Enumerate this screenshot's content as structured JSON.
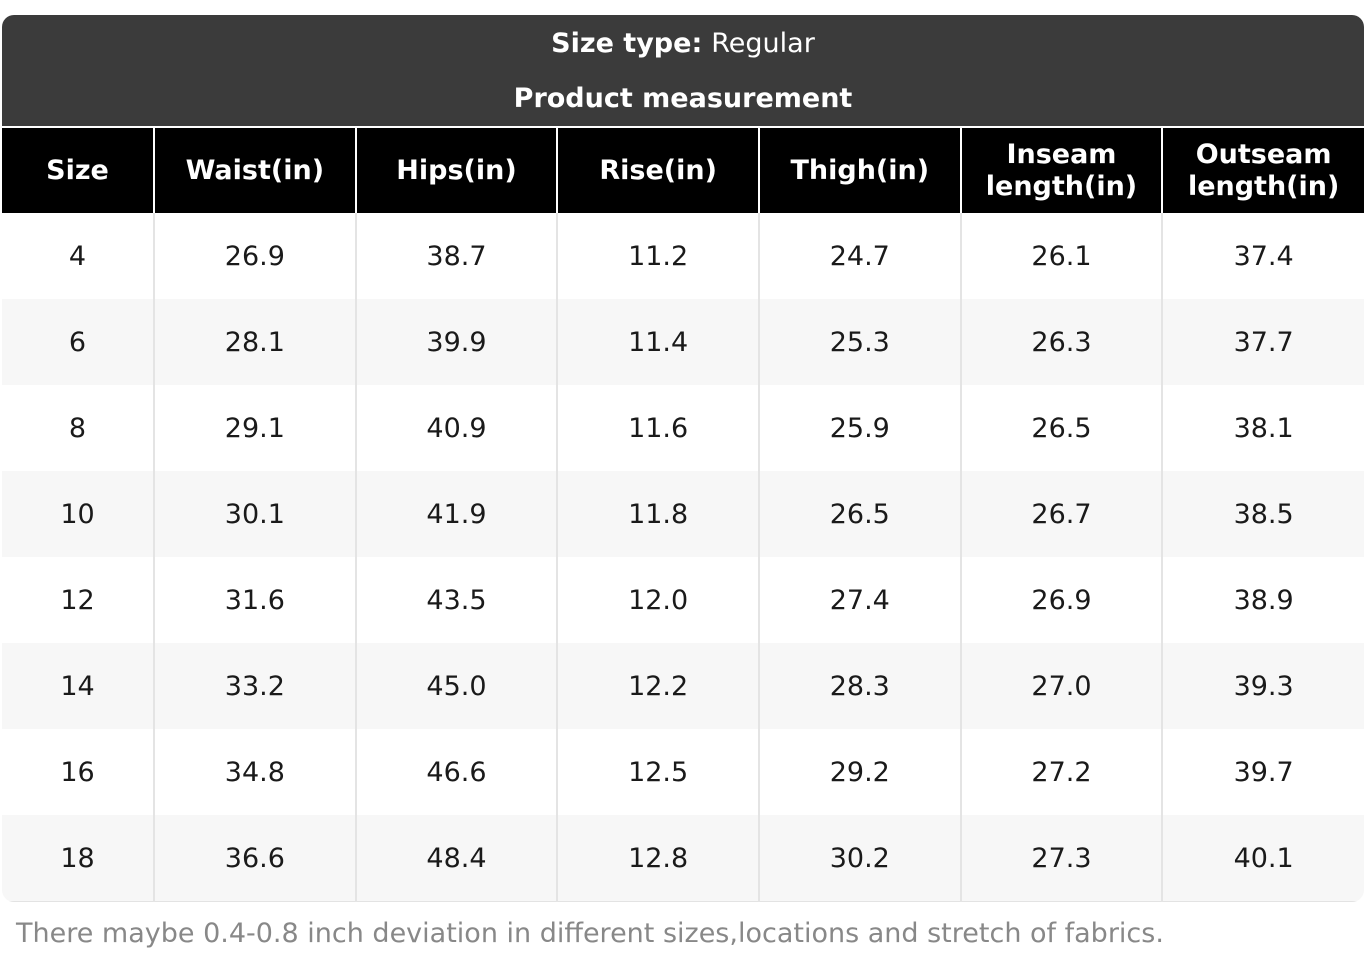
{
  "banner": {
    "size_type_label": "Size type:",
    "size_type_value": "Regular",
    "subtitle": "Product measurement"
  },
  "table": {
    "columns": [
      "Size",
      "Waist(in)",
      "Hips(in)",
      "Rise(in)",
      "Thigh(in)",
      "Inseam length(in)",
      "Outseam length(in)"
    ],
    "rows": [
      [
        "4",
        "26.9",
        "38.7",
        "11.2",
        "24.7",
        "26.1",
        "37.4"
      ],
      [
        "6",
        "28.1",
        "39.9",
        "11.4",
        "25.3",
        "26.3",
        "37.7"
      ],
      [
        "8",
        "29.1",
        "40.9",
        "11.6",
        "25.9",
        "26.5",
        "38.1"
      ],
      [
        "10",
        "30.1",
        "41.9",
        "11.8",
        "26.5",
        "26.7",
        "38.5"
      ],
      [
        "12",
        "31.6",
        "43.5",
        "12.0",
        "27.4",
        "26.9",
        "38.9"
      ],
      [
        "14",
        "33.2",
        "45.0",
        "12.2",
        "28.3",
        "27.0",
        "39.3"
      ],
      [
        "16",
        "34.8",
        "46.6",
        "12.5",
        "29.2",
        "27.2",
        "39.7"
      ],
      [
        "18",
        "36.6",
        "48.4",
        "12.8",
        "30.2",
        "27.3",
        "40.1"
      ]
    ]
  },
  "footnote": "There maybe 0.4-0.8 inch deviation in different sizes,locations and stretch of fabrics.",
  "colors": {
    "banner_bg": "#3b3b3b",
    "header_bg": "#000000",
    "alt_row_bg": "#f7f7f7",
    "separator": "#e4e4e4",
    "footnote_text": "#888888"
  }
}
